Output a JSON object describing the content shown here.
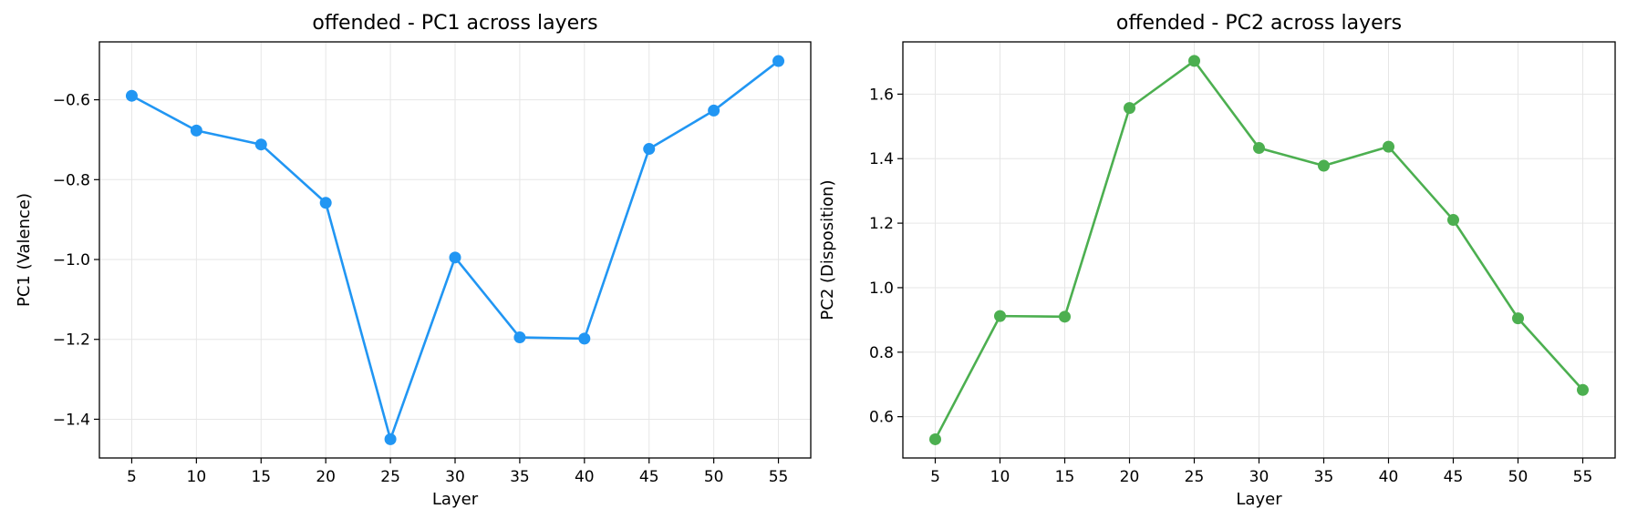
{
  "chart_data": [
    {
      "type": "line",
      "title": "offended - PC1 across layers",
      "xlabel": "Layer",
      "ylabel": "PC1 (Valence)",
      "x": [
        5,
        10,
        15,
        20,
        25,
        30,
        35,
        40,
        45,
        50,
        55
      ],
      "series": [
        {
          "values": [
            -0.59,
            -0.677,
            -0.712,
            -0.858,
            -1.45,
            -0.995,
            -1.195,
            -1.198,
            -0.723,
            -0.627,
            -0.503
          ],
          "color": "#2196F3"
        }
      ],
      "xticks": [
        "5",
        "10",
        "15",
        "20",
        "25",
        "30",
        "35",
        "40",
        "45",
        "50",
        "55"
      ],
      "yticks": [
        "−1.4",
        "−1.2",
        "−1.0",
        "−0.8",
        "−0.6"
      ],
      "ytick_values": [
        -1.4,
        -1.2,
        -1.0,
        -0.8,
        -0.6
      ],
      "xlim": [
        2.5,
        57.5
      ],
      "ylim": [
        -1.497,
        -0.455
      ],
      "grid": true
    },
    {
      "type": "line",
      "title": "offended - PC2 across layers",
      "xlabel": "Layer",
      "ylabel": "PC2 (Disposition)",
      "x": [
        5,
        10,
        15,
        20,
        25,
        30,
        35,
        40,
        45,
        50,
        55
      ],
      "series": [
        {
          "values": [
            0.53,
            0.912,
            0.91,
            1.557,
            1.703,
            1.433,
            1.378,
            1.437,
            1.21,
            0.905,
            0.683
          ],
          "color": "#4CAF50"
        }
      ],
      "xticks": [
        "5",
        "10",
        "15",
        "20",
        "25",
        "30",
        "35",
        "40",
        "45",
        "50",
        "55"
      ],
      "yticks": [
        "0.6",
        "0.8",
        "1.0",
        "1.2",
        "1.4",
        "1.6"
      ],
      "ytick_values": [
        0.6,
        0.8,
        1.0,
        1.2,
        1.4,
        1.6
      ],
      "xlim": [
        2.5,
        57.5
      ],
      "ylim": [
        0.472,
        1.762
      ],
      "grid": true
    }
  ]
}
